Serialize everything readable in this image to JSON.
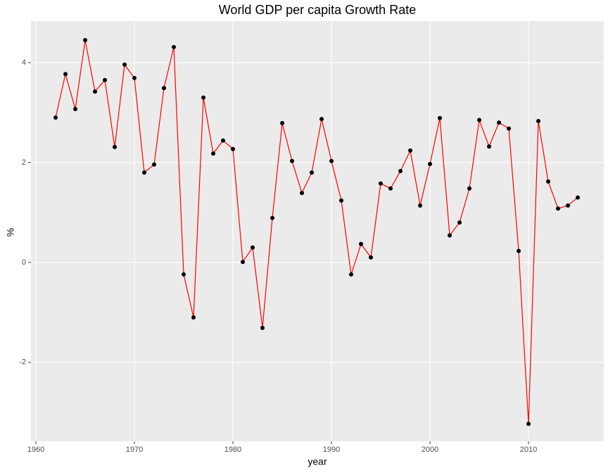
{
  "chart_data": {
    "type": "line",
    "title": "World GDP per capita Growth Rate",
    "x_label": "year",
    "y_label": "%",
    "x": [
      1962,
      1963,
      1964,
      1965,
      1966,
      1967,
      1968,
      1969,
      1970,
      1971,
      1972,
      1973,
      1974,
      1975,
      1976,
      1977,
      1978,
      1979,
      1980,
      1981,
      1982,
      1983,
      1984,
      1985,
      1986,
      1987,
      1988,
      1989,
      1990,
      1991,
      1992,
      1993,
      1994,
      1995,
      1996,
      1997,
      1998,
      1999,
      2000,
      2001,
      2002,
      2003,
      2004,
      2005,
      2006,
      2007,
      2008,
      2009,
      2010,
      2011,
      2012,
      2013,
      2014,
      2015
    ],
    "values": [
      2.9,
      3.77,
      3.07,
      4.45,
      3.42,
      3.65,
      2.31,
      3.96,
      3.69,
      1.8,
      1.96,
      3.49,
      4.31,
      -0.24,
      -1.1,
      3.3,
      2.18,
      2.44,
      2.27,
      0.01,
      0.3,
      -1.31,
      0.89,
      2.79,
      2.03,
      1.39,
      1.8,
      2.87,
      2.03,
      1.24,
      -0.24,
      0.37,
      0.1,
      1.58,
      1.48,
      1.83,
      2.24,
      1.14,
      1.97,
      2.89,
      0.54,
      0.8,
      1.48,
      2.85,
      2.32,
      2.8,
      2.68,
      0.23,
      -3.23,
      2.83,
      1.62,
      1.08,
      1.14,
      1.3
    ],
    "line_color": "#ff0000",
    "point_color": "#000000",
    "xlim": [
      1959.5,
      2017.64
    ],
    "ylim": [
      -3.58,
      4.83
    ],
    "xticks": [
      1960,
      1970,
      1980,
      1990,
      2000,
      2010
    ],
    "yticks": [
      -2,
      0,
      2,
      4
    ],
    "grid": true
  }
}
